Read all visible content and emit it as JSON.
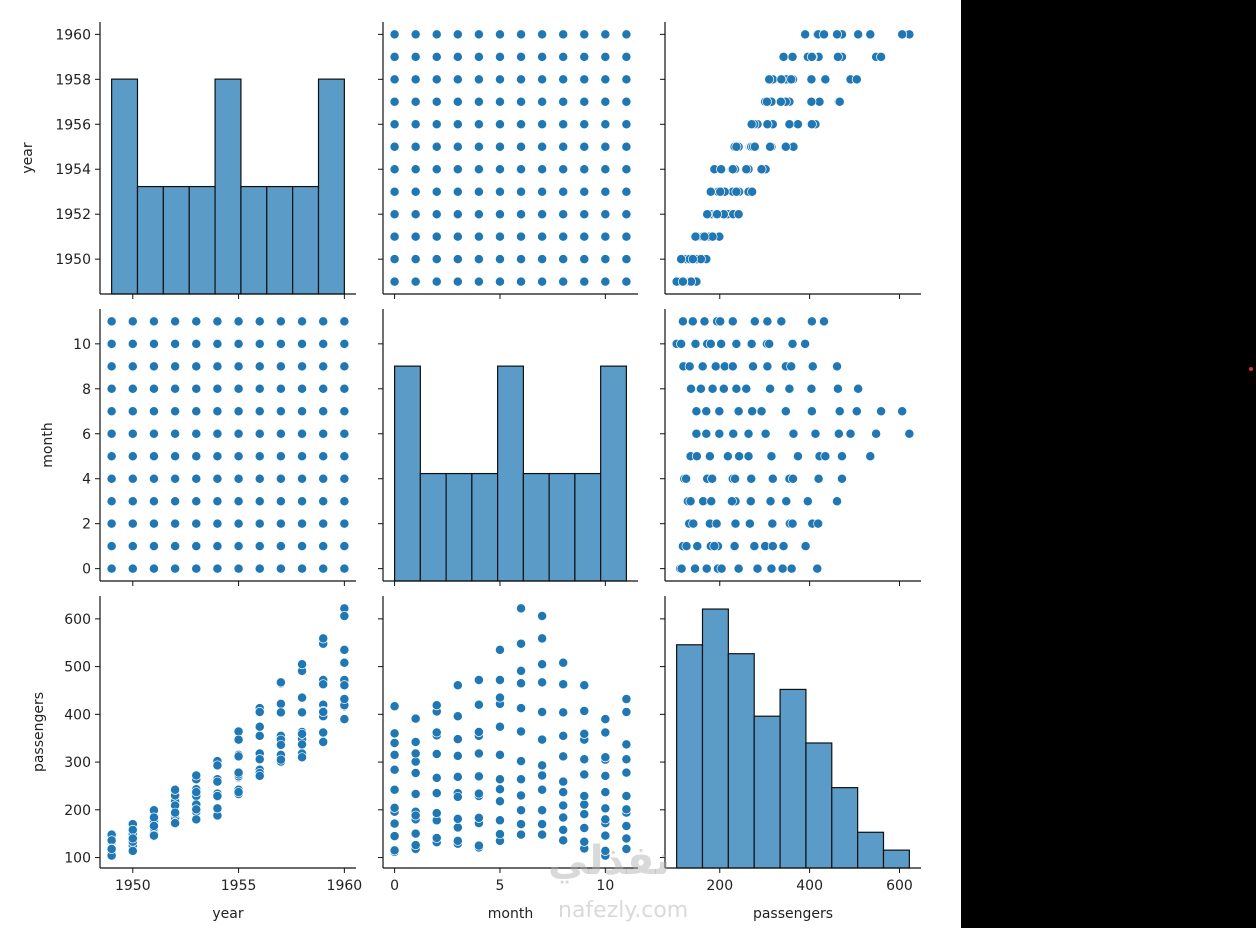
{
  "chart_data": {
    "type": "pairplot",
    "variables": [
      "year",
      "month",
      "passengers"
    ],
    "point_color": "#1f77b4",
    "hist_color": "#5b9bc8",
    "years": [
      1949,
      1950,
      1951,
      1952,
      1953,
      1954,
      1955,
      1956,
      1957,
      1958,
      1959,
      1960
    ],
    "months": [
      0,
      1,
      2,
      3,
      4,
      5,
      6,
      7,
      8,
      9,
      10,
      11
    ],
    "passengers_by_year": [
      [
        112,
        118,
        132,
        129,
        121,
        135,
        148,
        148,
        136,
        119,
        104,
        118
      ],
      [
        115,
        126,
        141,
        135,
        125,
        149,
        170,
        170,
        158,
        133,
        114,
        140
      ],
      [
        145,
        150,
        178,
        163,
        172,
        178,
        199,
        199,
        184,
        162,
        146,
        166
      ],
      [
        171,
        180,
        193,
        181,
        183,
        218,
        230,
        242,
        209,
        191,
        172,
        194
      ],
      [
        196,
        196,
        236,
        235,
        229,
        243,
        264,
        272,
        237,
        211,
        180,
        201
      ],
      [
        204,
        188,
        235,
        227,
        234,
        264,
        302,
        293,
        259,
        229,
        203,
        229
      ],
      [
        242,
        233,
        267,
        269,
        270,
        315,
        364,
        347,
        312,
        274,
        237,
        278
      ],
      [
        284,
        277,
        317,
        313,
        318,
        374,
        413,
        405,
        355,
        306,
        271,
        306
      ],
      [
        315,
        301,
        356,
        348,
        355,
        422,
        465,
        467,
        404,
        347,
        305,
        336
      ],
      [
        340,
        318,
        362,
        348,
        363,
        435,
        491,
        505,
        404,
        359,
        310,
        337
      ],
      [
        360,
        342,
        406,
        396,
        420,
        472,
        548,
        559,
        463,
        407,
        362,
        405
      ],
      [
        417,
        391,
        419,
        461,
        472,
        535,
        622,
        606,
        508,
        461,
        390,
        432
      ]
    ],
    "histograms": {
      "year": {
        "range": [
          1949,
          1960
        ],
        "bins": 9,
        "counts": [
          24,
          12,
          12,
          12,
          24,
          12,
          12,
          12,
          24
        ]
      },
      "month": {
        "range": [
          0,
          11
        ],
        "bins": 9,
        "counts": [
          24,
          12,
          12,
          12,
          24,
          12,
          12,
          12,
          24
        ]
      },
      "passengers": {
        "range": [
          104,
          622
        ],
        "bins": 9,
        "counts": [
          25,
          29,
          24,
          17,
          20,
          14,
          9,
          4,
          2
        ]
      }
    },
    "axes": {
      "year": {
        "label": "year",
        "lim": [
          1948.45,
          1960.55
        ],
        "ticks": [
          1950,
          1952,
          1954,
          1956,
          1958,
          1960
        ],
        "xticks": [
          1950,
          1955,
          1960
        ]
      },
      "month": {
        "label": "month",
        "lim": [
          -0.55,
          11.55
        ],
        "ticks": [
          0,
          2,
          4,
          6,
          8,
          10
        ],
        "xticks": [
          0,
          5,
          10
        ]
      },
      "passengers": {
        "label": "passengers",
        "lim": [
          78.1,
          647.9
        ],
        "ticks": [
          100,
          200,
          300,
          400,
          500,
          600
        ],
        "xticks": [
          200,
          400,
          600
        ]
      }
    }
  },
  "watermark": {
    "arabic": "نفذلي",
    "latin": "nafezly.com"
  }
}
